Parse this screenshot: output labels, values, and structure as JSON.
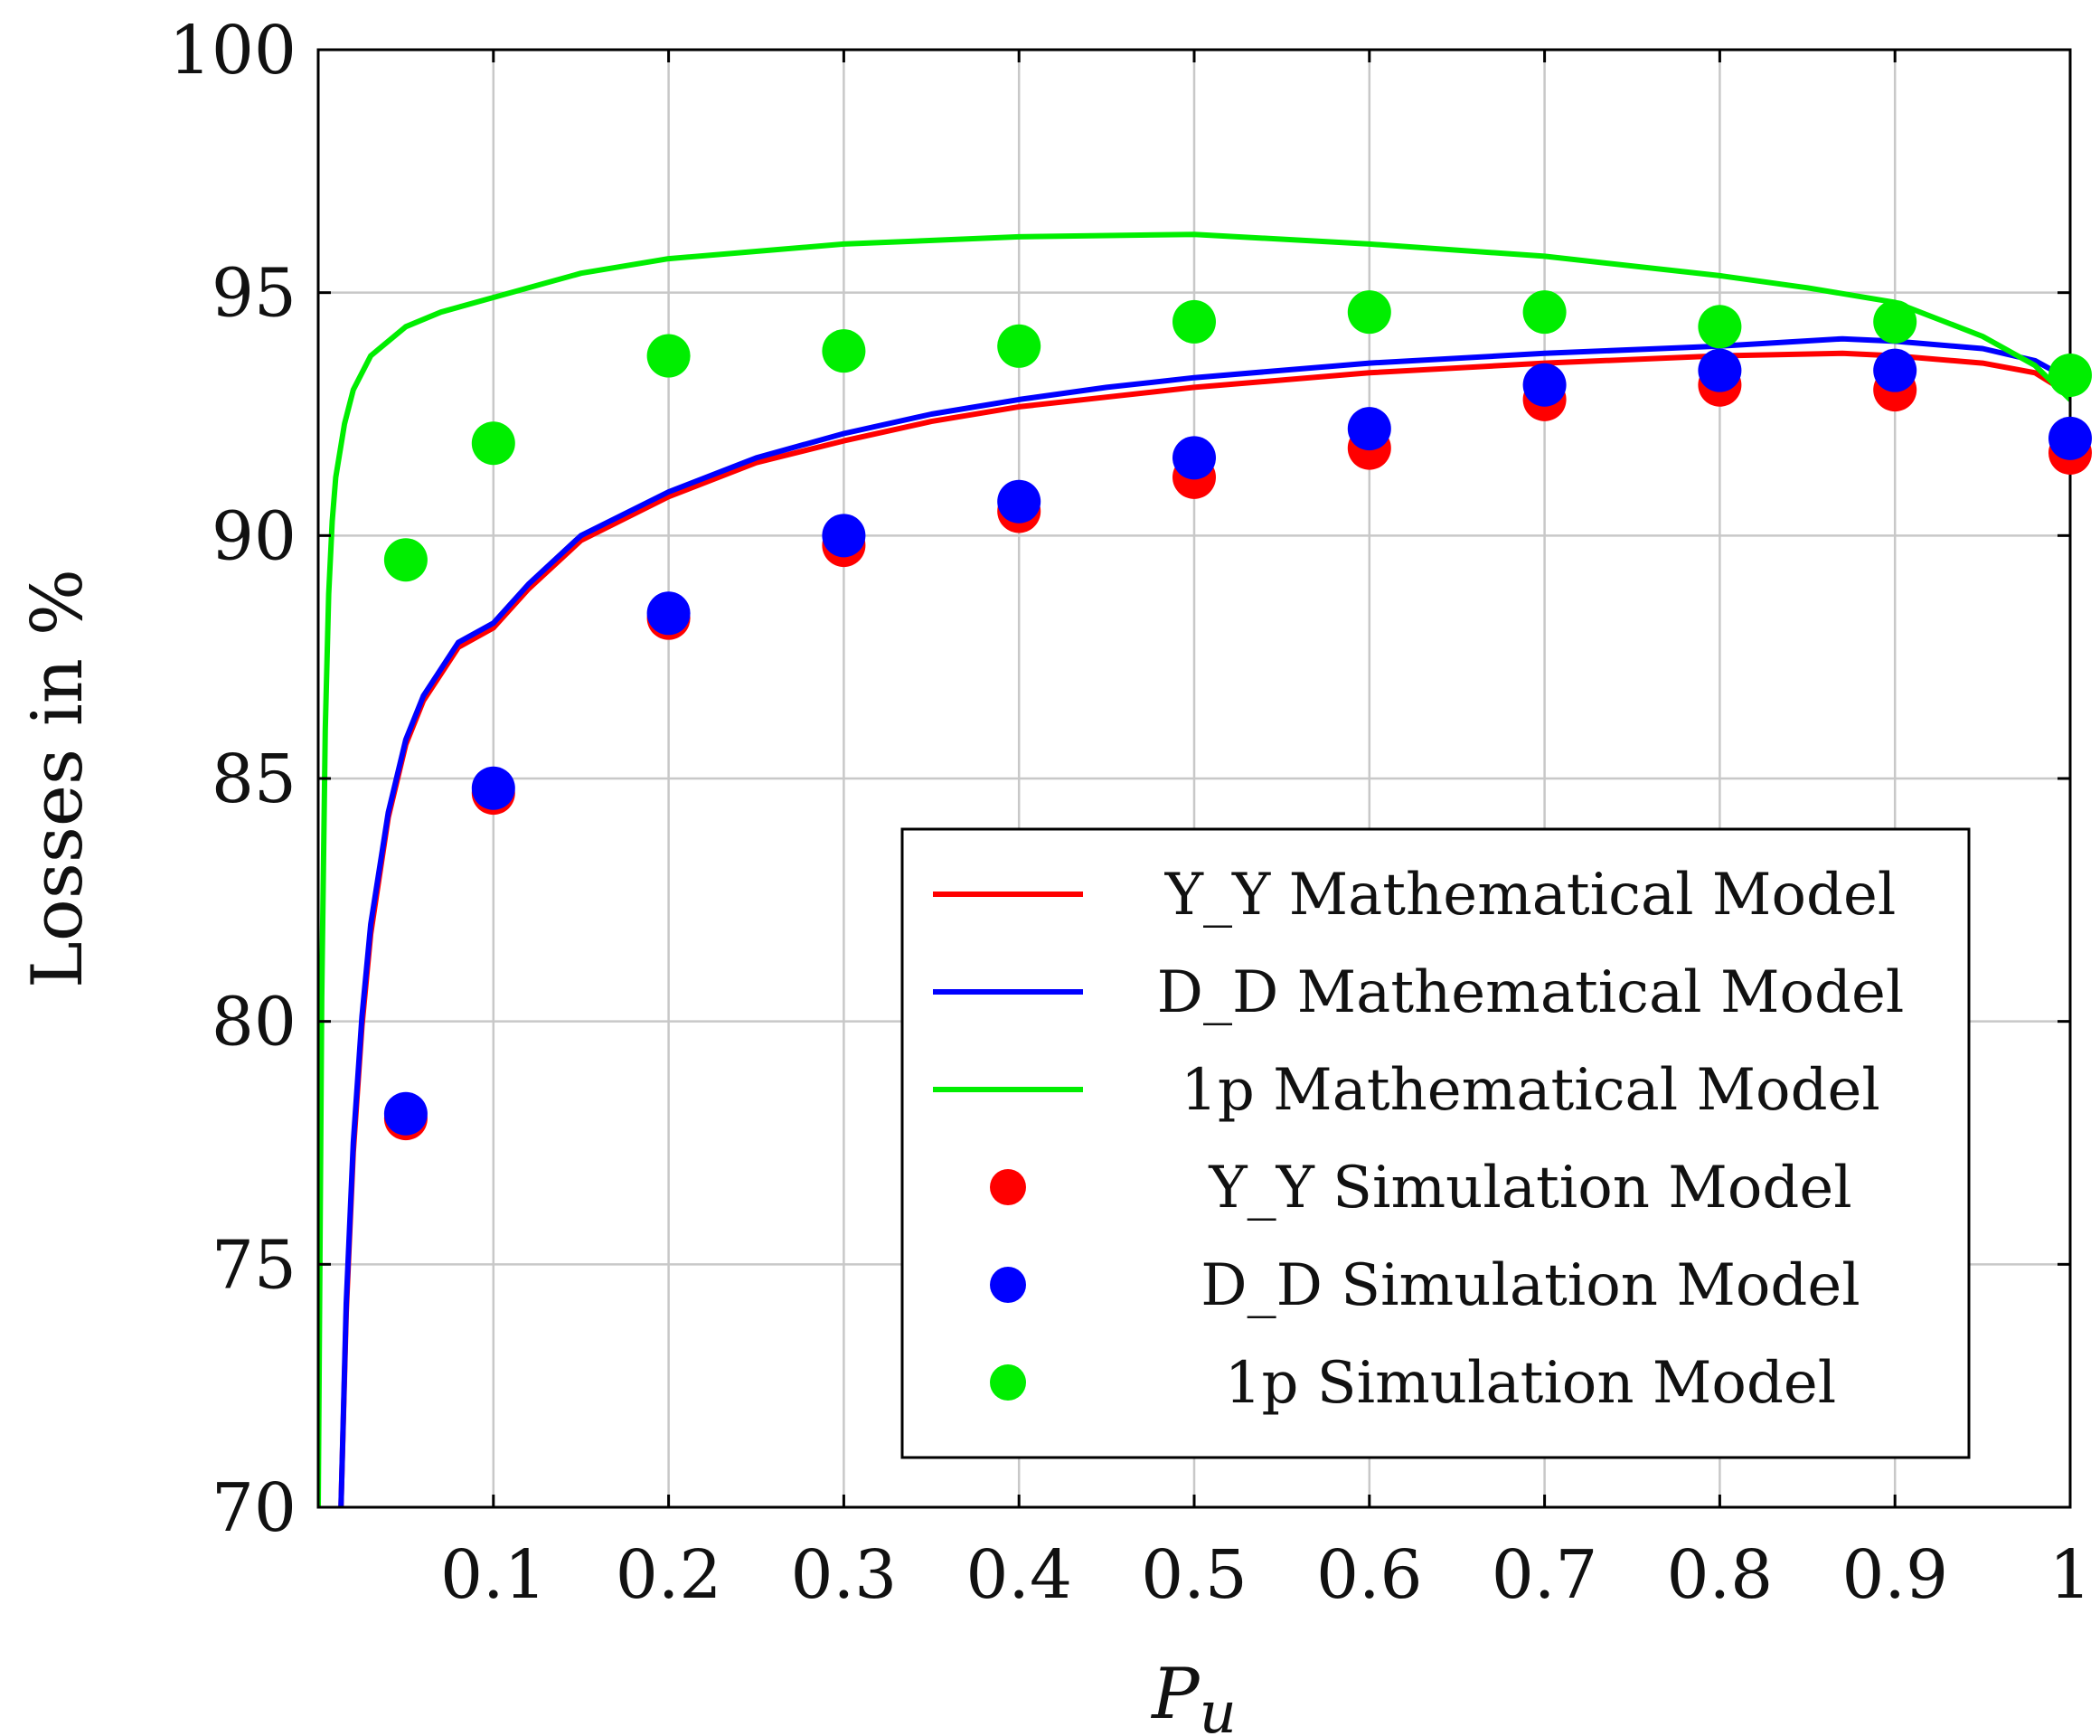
{
  "chart_data": {
    "type": "line",
    "title": "",
    "xlabel": "P",
    "xlabel_subscript": "u",
    "ylabel": "Losses in %",
    "xlim": [
      0,
      1
    ],
    "ylim": [
      70,
      100
    ],
    "xticks": [
      0.1,
      0.2,
      0.3,
      0.4,
      0.5,
      0.6,
      0.7,
      0.8,
      0.9,
      1
    ],
    "xtick_labels": [
      "0.1",
      "0.2",
      "0.3",
      "0.4",
      "0.5",
      "0.6",
      "0.7",
      "0.8",
      "0.9",
      "1"
    ],
    "yticks": [
      70,
      75,
      80,
      85,
      90,
      95,
      100
    ],
    "ytick_labels": [
      "70",
      "75",
      "80",
      "85",
      "90",
      "95",
      "100"
    ],
    "grid": true,
    "legend_position": "bottom-right",
    "colors": {
      "red": "#ff0000",
      "blue": "#0000ff",
      "green": "#00ee00"
    },
    "lines": [
      {
        "name": "Y_Y Mathematical Model",
        "color": "#ff0000",
        "x": [
          0.013,
          0.016,
          0.02,
          0.025,
          0.03,
          0.04,
          0.05,
          0.06,
          0.08,
          0.1,
          0.12,
          0.15,
          0.2,
          0.25,
          0.3,
          0.35,
          0.4,
          0.45,
          0.5,
          0.6,
          0.7,
          0.8,
          0.87,
          0.9,
          0.95,
          0.98,
          1.0
        ],
        "y": [
          70.0,
          74.0,
          77.3,
          79.9,
          81.8,
          84.2,
          85.7,
          86.6,
          87.7,
          88.1,
          88.9,
          89.9,
          90.8,
          91.5,
          91.95,
          92.35,
          92.65,
          92.85,
          93.05,
          93.35,
          93.55,
          93.7,
          93.75,
          93.7,
          93.55,
          93.35,
          92.9
        ]
      },
      {
        "name": "D_D Mathematical Model",
        "color": "#0000ff",
        "x": [
          0.013,
          0.016,
          0.02,
          0.025,
          0.03,
          0.04,
          0.05,
          0.06,
          0.08,
          0.1,
          0.12,
          0.15,
          0.2,
          0.25,
          0.3,
          0.35,
          0.4,
          0.45,
          0.5,
          0.6,
          0.7,
          0.8,
          0.87,
          0.9,
          0.95,
          0.98,
          1.0
        ],
        "y": [
          70.0,
          74.2,
          77.5,
          80.1,
          82.0,
          84.3,
          85.8,
          86.7,
          87.8,
          88.2,
          89.0,
          90.0,
          90.9,
          91.6,
          92.1,
          92.5,
          92.8,
          93.05,
          93.25,
          93.55,
          93.75,
          93.9,
          94.05,
          94.0,
          93.85,
          93.6,
          93.2
        ]
      },
      {
        "name": "1p Mathematical Model",
        "color": "#00ee00",
        "x": [
          0.0,
          0.002,
          0.004,
          0.006,
          0.008,
          0.01,
          0.015,
          0.02,
          0.03,
          0.05,
          0.07,
          0.1,
          0.15,
          0.2,
          0.3,
          0.4,
          0.5,
          0.6,
          0.7,
          0.8,
          0.85,
          0.9,
          0.95,
          0.98,
          1.0
        ],
        "y": [
          70.0,
          80.5,
          86.0,
          88.8,
          90.3,
          91.2,
          92.3,
          93.0,
          93.7,
          94.3,
          94.6,
          94.9,
          95.4,
          95.7,
          96.0,
          96.15,
          96.2,
          96.0,
          95.75,
          95.35,
          95.1,
          94.8,
          94.1,
          93.5,
          92.8
        ]
      }
    ],
    "scatter": [
      {
        "name": "Y_Y Simulation Model",
        "color": "#ff0000",
        "x": [
          0.05,
          0.1,
          0.2,
          0.3,
          0.4,
          0.5,
          0.6,
          0.7,
          0.8,
          0.9,
          1.0
        ],
        "y": [
          78.0,
          84.7,
          88.3,
          89.8,
          90.5,
          91.2,
          91.8,
          92.8,
          93.1,
          93.0,
          91.7
        ]
      },
      {
        "name": "D_D Simulation Model",
        "color": "#0000ff",
        "x": [
          0.05,
          0.1,
          0.2,
          0.3,
          0.4,
          0.5,
          0.6,
          0.7,
          0.8,
          0.9,
          1.0
        ],
        "y": [
          78.1,
          84.8,
          88.4,
          90.0,
          90.7,
          91.6,
          92.2,
          93.1,
          93.4,
          93.4,
          92.0
        ]
      },
      {
        "name": "1p Simulation Model",
        "color": "#00ee00",
        "x": [
          0.05,
          0.1,
          0.2,
          0.3,
          0.4,
          0.5,
          0.6,
          0.7,
          0.8,
          0.9,
          1.0
        ],
        "y": [
          89.5,
          91.9,
          93.7,
          93.8,
          93.9,
          94.4,
          94.6,
          94.6,
          94.3,
          94.4,
          93.3
        ]
      }
    ],
    "legend": [
      "Y_Y Mathematical Model",
      "D_D Mathematical Model",
      "1p Mathematical Model",
      "Y_Y Simulation Model",
      "D_D Simulation Model",
      "1p Simulation Model"
    ]
  }
}
